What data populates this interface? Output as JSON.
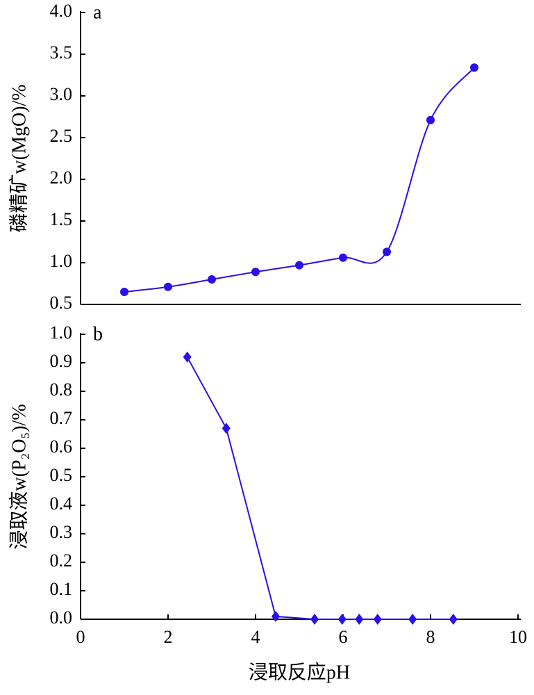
{
  "chart_data": [
    {
      "type": "line",
      "annotation": "a",
      "ylabel": "磷精矿w(MgO)/%",
      "x": [
        1,
        2,
        3,
        4,
        5,
        6,
        7,
        8,
        9
      ],
      "series": [
        {
          "color": "#2a10e8",
          "marker": "circle",
          "values": [
            0.65,
            0.71,
            0.8,
            0.89,
            0.97,
            1.06,
            1.13,
            2.71,
            3.34
          ]
        }
      ],
      "xlim": [
        0,
        10
      ],
      "ylim": [
        0.5,
        4.0
      ],
      "yticks": [
        0.5,
        {
          "value": 1.0,
          "label": "1.0"
        },
        1.5,
        {
          "value": 2.0,
          "label": "2.0"
        },
        2.5,
        {
          "value": 3.0,
          "label": "3.0"
        },
        3.5,
        {
          "value": 4.0,
          "label": "4.0"
        }
      ]
    },
    {
      "type": "line",
      "annotation": "b",
      "ylabel": "浸取液w(P₂O₅)/%",
      "xlabel": "浸取反应pH",
      "x": [
        2.44,
        3.33,
        4.46,
        5.35,
        5.98,
        6.37,
        6.79,
        7.59,
        8.52
      ],
      "series": [
        {
          "color": "#2a10e8",
          "marker": "diamond",
          "values": [
            0.92,
            0.67,
            0.01,
            0.0,
            0.0,
            0.0,
            0.0,
            0.0,
            0.0
          ]
        }
      ],
      "xlim": [
        0,
        10
      ],
      "ylim": [
        0.0,
        1.0
      ],
      "xticks": [
        0,
        2,
        4,
        6,
        8,
        10
      ],
      "yticks": [
        {
          "value": 0.0,
          "label": "0.0"
        },
        0.1,
        0.2,
        0.3,
        0.4,
        0.5,
        0.6,
        0.7,
        0.8,
        0.9,
        {
          "value": 1.0,
          "label": "1.0"
        }
      ]
    }
  ]
}
